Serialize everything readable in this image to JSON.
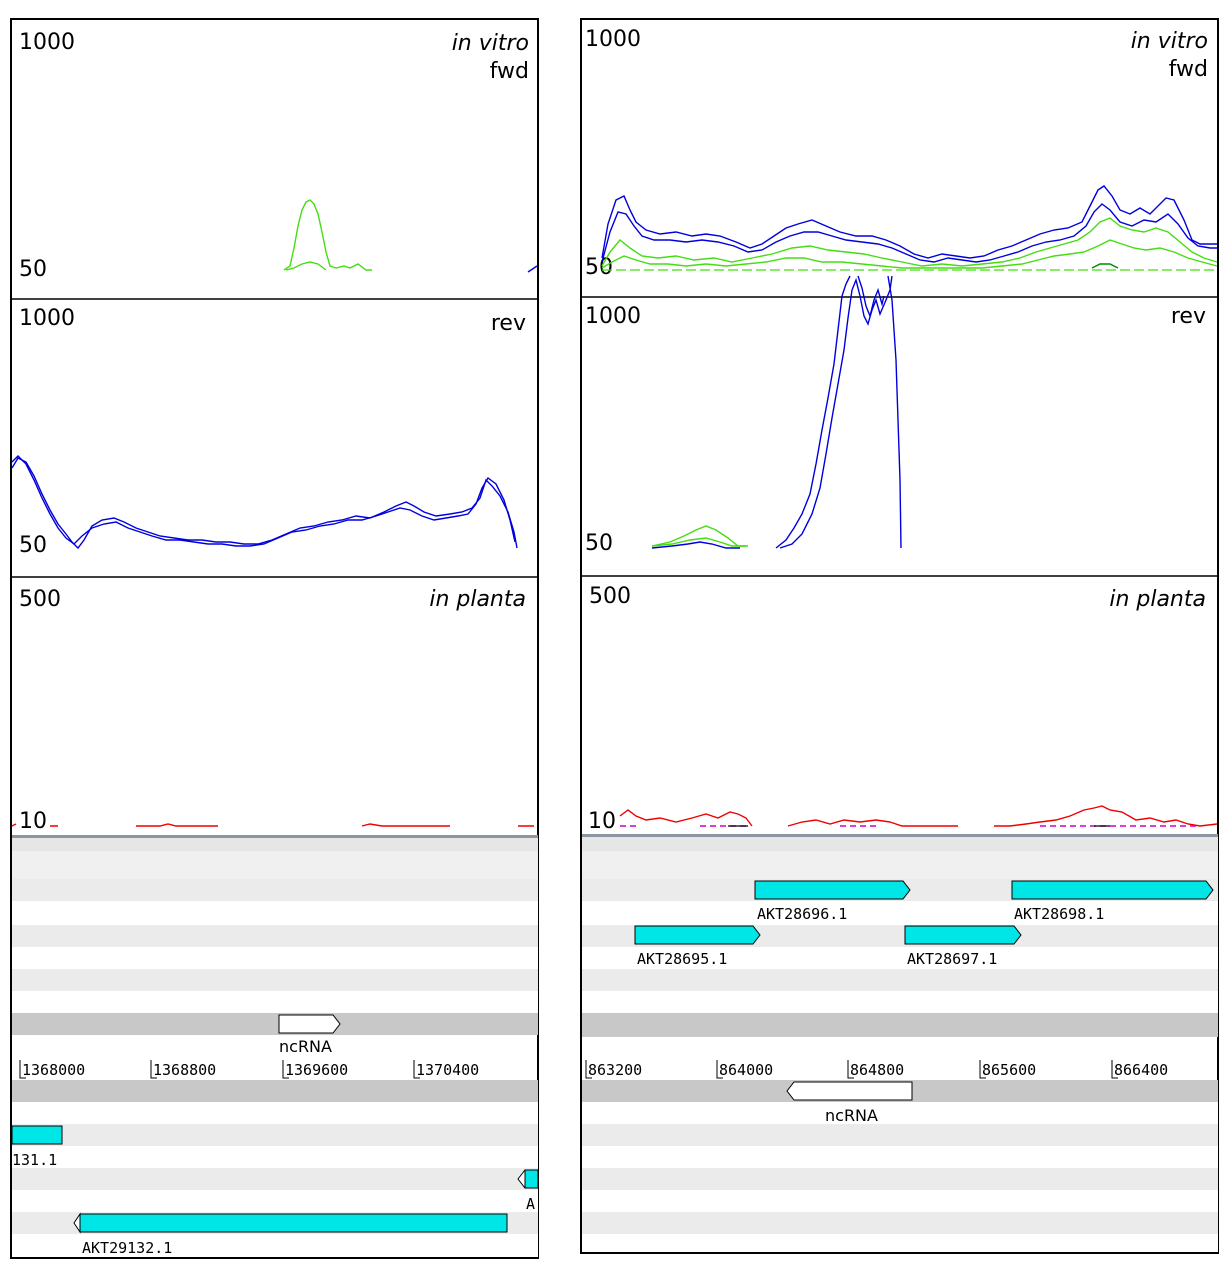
{
  "colors": {
    "invitro_a": "#0000dd",
    "invitro_b": "#44dd11",
    "inplanta_a": "#ee0000",
    "inplanta_b": "#cc00cc",
    "gene_fill": "#00e5e5",
    "ncrna_fill": "#ffffff",
    "stripe_light": "#f0f0f0",
    "stripe_dark": "#c8c8c8",
    "separator": "#8c96a0"
  },
  "panels": [
    {
      "tracks": {
        "fwd": {
          "max": "1000",
          "min": "50",
          "title": "in vitro",
          "strand": "fwd"
        },
        "rev": {
          "max": "1000",
          "min": "50",
          "strand": "rev"
        },
        "planta": {
          "max": "500",
          "min": "10",
          "title": "in planta"
        }
      },
      "coordinates": [
        "1368000",
        "1368800",
        "1369600",
        "1370400"
      ],
      "features": {
        "top_ncrna": "ncRNA",
        "gene_a": "131.1",
        "gene_b": "A",
        "gene_c": "AKT29132.1"
      }
    },
    {
      "tracks": {
        "fwd": {
          "max": "1000",
          "min": "50",
          "title": "in vitro",
          "strand": "fwd"
        },
        "rev": {
          "max": "1000",
          "min": "50",
          "strand": "rev"
        },
        "planta": {
          "max": "500",
          "min": "10",
          "title": "in planta"
        }
      },
      "coordinates": [
        "863200",
        "864000",
        "864800",
        "865600",
        "866400"
      ],
      "features": {
        "gene_1": "AKT28696.1",
        "gene_2": "AKT28698.1",
        "gene_3": "AKT28695.1",
        "gene_4": "AKT28697.1",
        "bottom_ncrna": "ncRNA"
      }
    }
  ]
}
